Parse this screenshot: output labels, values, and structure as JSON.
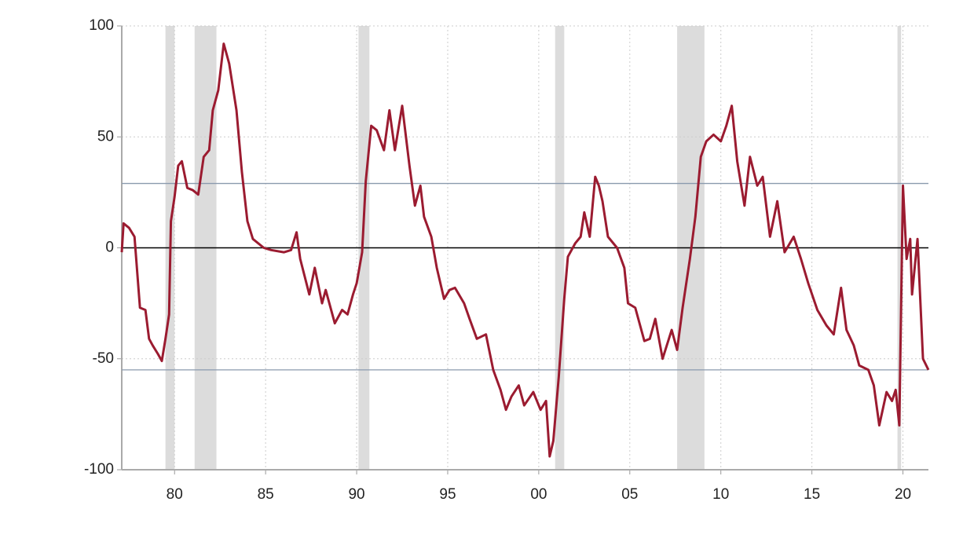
{
  "chart_data": {
    "type": "line",
    "x": [
      1977.1,
      1977.2,
      1977.5,
      1977.8,
      1978.1,
      1978.4,
      1978.6,
      1978.8,
      1979.1,
      1979.3,
      1979.5,
      1979.7,
      1979.8,
      1980.0,
      1980.2,
      1980.4,
      1980.7,
      1981.0,
      1981.3,
      1981.6,
      1981.9,
      1982.1,
      1982.4,
      1982.7,
      1983.0,
      1983.4,
      1983.7,
      1984.0,
      1984.3,
      1984.9,
      1985.3,
      1986.0,
      1986.4,
      1986.7,
      1986.9,
      1987.4,
      1987.7,
      1988.1,
      1988.3,
      1988.8,
      1989.2,
      1989.5,
      1989.8,
      1990.0,
      1990.3,
      1990.5,
      1990.8,
      1991.1,
      1991.5,
      1991.8,
      1992.1,
      1992.5,
      1992.9,
      1993.2,
      1993.5,
      1993.7,
      1994.1,
      1994.4,
      1994.8,
      1995.1,
      1995.4,
      1995.9,
      1996.2,
      1996.6,
      1997.1,
      1997.5,
      1997.9,
      1998.2,
      1998.5,
      1998.9,
      1999.2,
      1999.7,
      2000.1,
      2000.4,
      2000.6,
      2000.8,
      2001.1,
      2001.4,
      2001.6,
      2002.0,
      2002.3,
      2002.5,
      2002.8,
      2003.1,
      2003.3,
      2003.5,
      2003.8,
      2004.3,
      2004.7,
      2004.9,
      2005.3,
      2005.8,
      2006.1,
      2006.4,
      2006.8,
      2007.3,
      2007.6,
      2007.9,
      2008.3,
      2008.6,
      2008.9,
      2009.2,
      2009.6,
      2010.0,
      2010.3,
      2010.6,
      2010.9,
      2011.3,
      2011.6,
      2012.0,
      2012.3,
      2012.7,
      2013.1,
      2013.5,
      2014.0,
      2014.4,
      2014.8,
      2015.3,
      2015.8,
      2016.2,
      2016.6,
      2016.9,
      2017.3,
      2017.6,
      2018.1,
      2018.4,
      2018.7,
      2019.1,
      2019.4,
      2019.6,
      2019.8,
      2020.0,
      2020.2,
      2020.4,
      2020.5,
      2020.8,
      2021.1,
      2021.4
    ],
    "values": [
      -2,
      11,
      9,
      5,
      -27,
      -28,
      -41,
      -44,
      -48,
      -51,
      -41,
      -30,
      12,
      23,
      37,
      39,
      27,
      26,
      24,
      41,
      44,
      62,
      71,
      92,
      83,
      62,
      34,
      12,
      4,
      0,
      -1,
      -2,
      -1,
      7,
      -5,
      -21,
      -9,
      -25,
      -19,
      -34,
      -28,
      -30,
      -21,
      -16,
      -2,
      30,
      55,
      53,
      44,
      62,
      44,
      64,
      37,
      19,
      28,
      14,
      5,
      -9,
      -23,
      -19,
      -18,
      -25,
      -32,
      -41,
      -39,
      -55,
      -64,
      -73,
      -67,
      -62,
      -71,
      -65,
      -73,
      -69,
      -94,
      -87,
      -58,
      -23,
      -4,
      2,
      5,
      16,
      5,
      32,
      28,
      21,
      5,
      0,
      -9,
      -25,
      -27,
      -42,
      -41,
      -32,
      -50,
      -37,
      -46,
      -27,
      -5,
      14,
      41,
      48,
      51,
      48,
      55,
      64,
      39,
      19,
      41,
      28,
      32,
      5,
      21,
      -2,
      5,
      -5,
      -16,
      -28,
      -35,
      -39,
      -18,
      -37,
      -44,
      -53,
      -55,
      -62,
      -80,
      -65,
      -69,
      -64,
      -80,
      28,
      -5,
      4,
      -21,
      4,
      -50,
      -55
    ],
    "color": "#9b1b30",
    "xlim": [
      1977.1,
      2021.4
    ],
    "xticks": [
      {
        "value": 1980,
        "label": "80"
      },
      {
        "value": 1985,
        "label": "85"
      },
      {
        "value": 1990,
        "label": "90"
      },
      {
        "value": 1995,
        "label": "95"
      },
      {
        "value": 2000,
        "label": "00"
      },
      {
        "value": 2005,
        "label": "05"
      },
      {
        "value": 2010,
        "label": "10"
      },
      {
        "value": 2015,
        "label": "15"
      },
      {
        "value": 2020,
        "label": "20"
      }
    ],
    "ylim": [
      -100,
      100
    ],
    "yticks": [
      100,
      50,
      0,
      -50,
      -100
    ],
    "grid": true,
    "zero_line": true,
    "shaded_periods": [
      [
        1979.5,
        1980.0
      ],
      [
        1981.1,
        1982.3
      ],
      [
        1990.1,
        1990.7
      ],
      [
        2000.9,
        2001.4
      ],
      [
        2007.6,
        2009.1
      ],
      [
        2019.7,
        2019.9
      ]
    ],
    "reference_lines": [
      29,
      -55
    ]
  }
}
